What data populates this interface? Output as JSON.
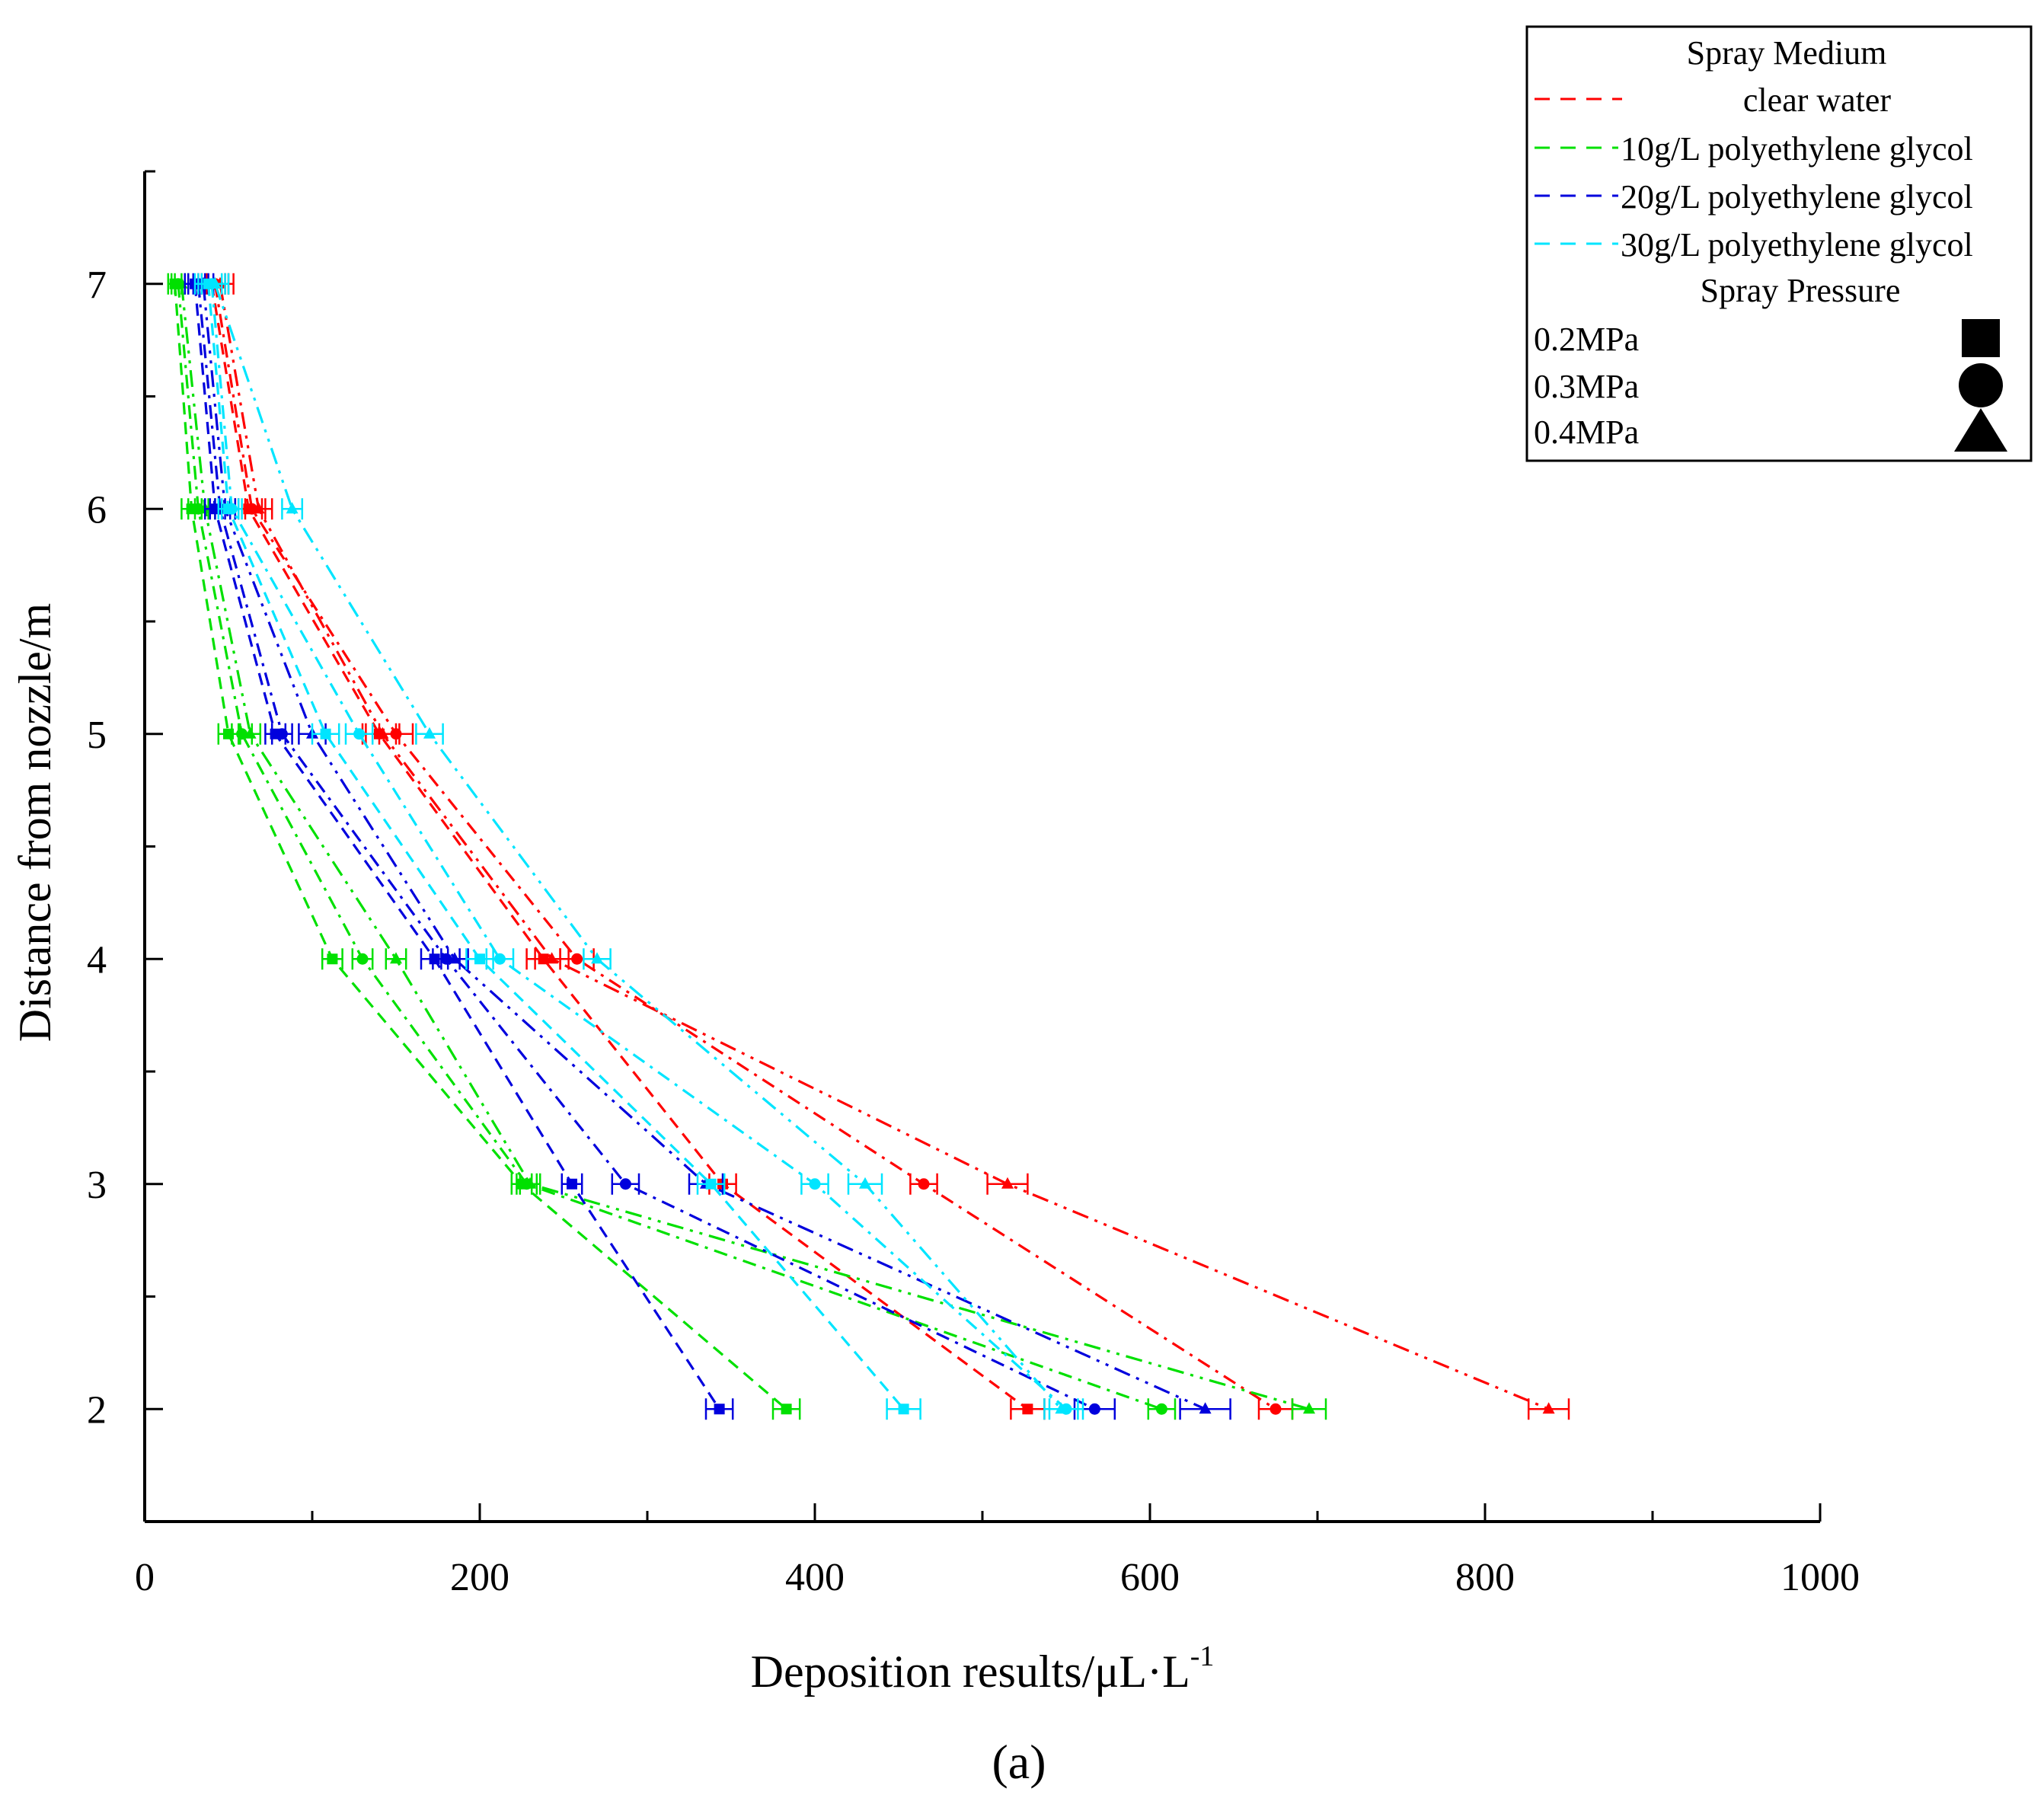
{
  "chart_data": {
    "type": "line",
    "title": "",
    "panel_label": "(a)",
    "xlabel": "Deposition results/μL·L",
    "xlabel_sup": "-1",
    "ylabel": "Distance from nozzle/m",
    "xlim": [
      0,
      1000
    ],
    "ylim": [
      1.5,
      7.5
    ],
    "x_ticks": [
      0,
      200,
      400,
      600,
      800,
      1000
    ],
    "y_ticks": [
      2,
      3,
      4,
      5,
      6,
      7
    ],
    "grid": false,
    "legend": {
      "placement": "top-right",
      "medium_title": "Spray Medium",
      "pressure_title": "Spray Pressure",
      "media": [
        {
          "label": "clear water",
          "color": "#ff0000"
        },
        {
          "label": "10g/L polyethylene glycol",
          "color": "#00e000"
        },
        {
          "label": "20g/L polyethylene glycol",
          "color": "#0000dd"
        },
        {
          "label": "30g/L polyethylene glycol",
          "color": "#00e5ff"
        }
      ],
      "pressures": [
        {
          "label": "0.2MPa",
          "marker": "square"
        },
        {
          "label": "0.3MPa",
          "marker": "circle"
        },
        {
          "label": "0.4MPa",
          "marker": "triangle"
        }
      ]
    },
    "series": [
      {
        "name": "clear water 0.2MPa",
        "color": "#ff0000",
        "marker": "square",
        "y": [
          7,
          6,
          5,
          4,
          3,
          2
        ],
        "x": [
          40,
          62,
          140,
          238,
          345,
          527
        ],
        "err": [
          8,
          8,
          10,
          10,
          8,
          10
        ]
      },
      {
        "name": "clear water 0.3MPa",
        "color": "#ff0000",
        "marker": "circle",
        "y": [
          7,
          6,
          5,
          4,
          3,
          2
        ],
        "x": [
          42,
          64,
          150,
          258,
          465,
          675
        ],
        "err": [
          8,
          8,
          10,
          10,
          8,
          10
        ]
      },
      {
        "name": "clear water 0.4MPa",
        "color": "#ff0000",
        "marker": "triangle",
        "y": [
          7,
          6,
          5,
          4,
          3,
          2
        ],
        "x": [
          45,
          68,
          142,
          243,
          515,
          838
        ],
        "err": [
          8,
          8,
          10,
          10,
          12,
          12
        ]
      },
      {
        "name": "10g/L polyethylene glycol 0.2MPa",
        "color": "#00e000",
        "marker": "square",
        "y": [
          7,
          6,
          5,
          4,
          3,
          2
        ],
        "x": [
          18,
          28,
          50,
          112,
          225,
          383
        ],
        "err": [
          4,
          6,
          6,
          6,
          6,
          8
        ]
      },
      {
        "name": "10g/L polyethylene glycol 0.3MPa",
        "color": "#00e000",
        "marker": "circle",
        "y": [
          7,
          6,
          5,
          4,
          3,
          2
        ],
        "x": [
          20,
          32,
          58,
          130,
          228,
          607
        ],
        "err": [
          4,
          6,
          6,
          6,
          6,
          8
        ]
      },
      {
        "name": "10g/L polyethylene glycol 0.4MPa",
        "color": "#00e000",
        "marker": "triangle",
        "y": [
          7,
          6,
          5,
          4,
          3,
          2
        ],
        "x": [
          22,
          36,
          63,
          150,
          230,
          695
        ],
        "err": [
          4,
          6,
          6,
          6,
          6,
          10
        ]
      },
      {
        "name": "20g/L polyethylene glycol 0.2MPa",
        "color": "#0000dd",
        "marker": "square",
        "y": [
          7,
          6,
          5,
          4,
          3,
          2
        ],
        "x": [
          30,
          42,
          78,
          173,
          255,
          343
        ],
        "err": [
          6,
          6,
          6,
          8,
          6,
          8
        ]
      },
      {
        "name": "20g/L polyethylene glycol 0.3MPa",
        "color": "#0000dd",
        "marker": "circle",
        "y": [
          7,
          6,
          5,
          4,
          3,
          2
        ],
        "x": [
          32,
          45,
          82,
          180,
          287,
          567
        ],
        "err": [
          6,
          6,
          6,
          8,
          8,
          12
        ]
      },
      {
        "name": "20g/L polyethylene glycol 0.4MPa",
        "color": "#0000dd",
        "marker": "triangle",
        "y": [
          7,
          6,
          5,
          4,
          3,
          2
        ],
        "x": [
          35,
          48,
          100,
          185,
          335,
          633
        ],
        "err": [
          6,
          6,
          8,
          8,
          10,
          15
        ]
      },
      {
        "name": "30g/L polyethylene glycol 0.2MPa",
        "color": "#00e5ff",
        "marker": "square",
        "y": [
          7,
          6,
          5,
          4,
          3,
          2
        ],
        "x": [
          38,
          50,
          108,
          200,
          338,
          453
        ],
        "err": [
          8,
          6,
          8,
          8,
          8,
          10
        ]
      },
      {
        "name": "30g/L polyethylene glycol 0.3MPa",
        "color": "#00e5ff",
        "marker": "circle",
        "y": [
          7,
          6,
          5,
          4,
          3,
          2
        ],
        "x": [
          40,
          52,
          128,
          212,
          400,
          550
        ],
        "err": [
          8,
          6,
          8,
          8,
          8,
          10
        ]
      },
      {
        "name": "30g/L polyethylene glycol 0.4MPa",
        "color": "#00e5ff",
        "marker": "triangle",
        "y": [
          7,
          6,
          5,
          4,
          3,
          2
        ],
        "x": [
          42,
          88,
          170,
          270,
          430,
          547
        ],
        "err": [
          8,
          6,
          8,
          8,
          10,
          10
        ]
      }
    ]
  }
}
